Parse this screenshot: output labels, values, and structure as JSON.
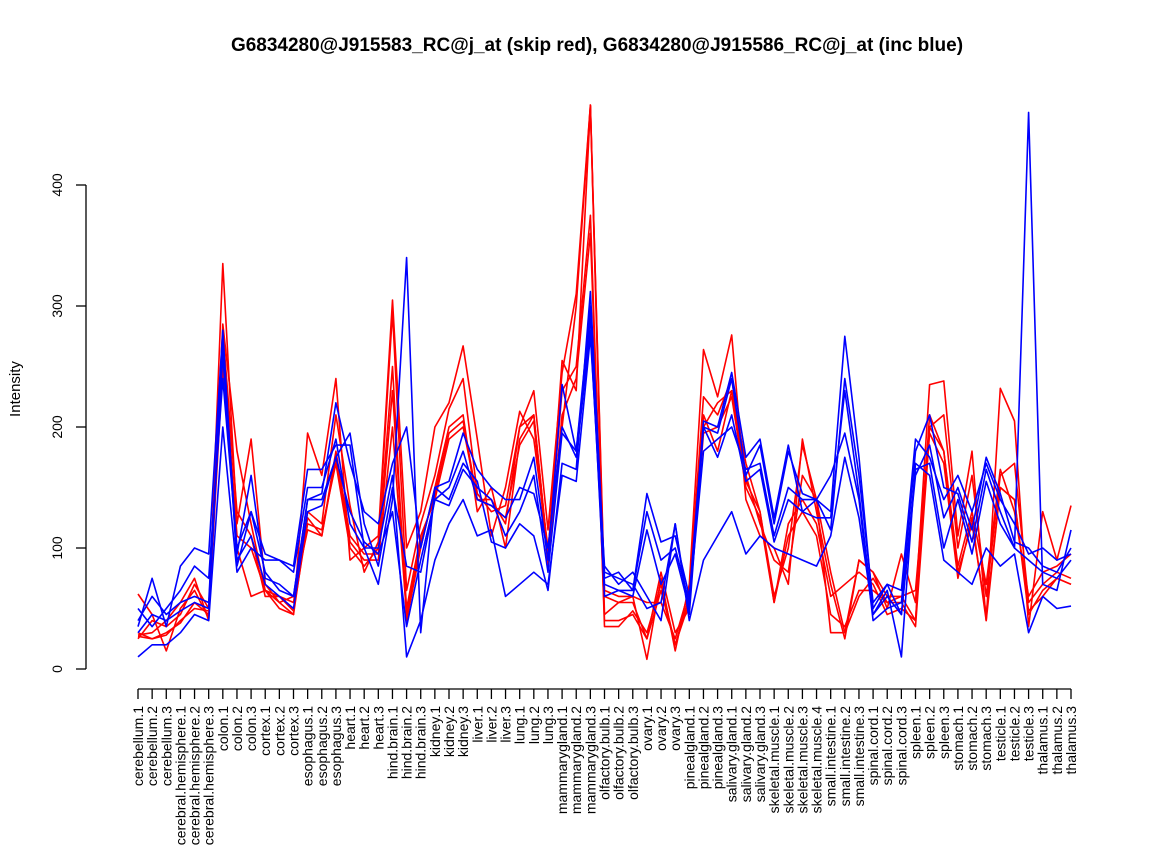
{
  "chart_data": {
    "type": "line",
    "title": "G6834280@J915583_RC@j_at (skip red), G6834280@J915586_RC@j_at (inc blue)",
    "xlabel": "",
    "ylabel": "Intensity",
    "ylim": [
      0,
      400
    ],
    "yticks": [
      0,
      100,
      200,
      300,
      400
    ],
    "grid": false,
    "legend": "none",
    "colors": {
      "skip": "#ff0000",
      "inc": "#0000ff"
    },
    "categories": [
      "cerebellum.1",
      "cerebellum.2",
      "cerebellum.3",
      "cerebral.hemisphere.1",
      "cerebral.hemisphere.2",
      "cerebral.hemisphere.3",
      "colon.1",
      "colon.2",
      "colon.3",
      "cortex.1",
      "cortex.2",
      "cortex.3",
      "esophagus.1",
      "esophagus.2",
      "esophagus.3",
      "heart.1",
      "heart.2",
      "heart.3",
      "hind.brain.1",
      "hind.brain.2",
      "hind.brain.3",
      "kidney.1",
      "kidney.2",
      "kidney.3",
      "liver.1",
      "liver.2",
      "liver.3",
      "lung.1",
      "lung.2",
      "lung.3",
      "mammarygland.1",
      "mammarygland.2",
      "mammarygland.3",
      "olfactory.bulb.1",
      "olfactory.bulb.2",
      "olfactory.bulb.3",
      "ovary.1",
      "ovary.2",
      "ovary.3",
      "pinealgland.1",
      "pinealgland.2",
      "pinealgland.3",
      "salivary.gland.1",
      "salivary.gland.2",
      "salivary.gland.3",
      "skeletal.muscle.1",
      "skeletal.muscle.2",
      "skeletal.muscle.3",
      "skeletal.muscle.4",
      "small.intestine.1",
      "small.intestine.2",
      "small.intestine.3",
      "spinal.cord.1",
      "spinal.cord.2",
      "spinal.cord.3",
      "spleen.1",
      "spleen.2",
      "spleen.3",
      "stomach.1",
      "stomach.2",
      "stomach.3",
      "testicle.1",
      "testicle.2",
      "testicle.3",
      "thalamus.1",
      "thalamus.2",
      "thalamus.3"
    ],
    "series": [
      {
        "group": "skip",
        "values": [
          62,
          45,
          15,
          50,
          65,
          42,
          335,
          120,
          190,
          70,
          55,
          45,
          195,
          160,
          240,
          90,
          100,
          110,
          305,
          100,
          130,
          200,
          220,
          267,
          190,
          110,
          150,
          213,
          190,
          100,
          200,
          300,
          466,
          60,
          55,
          60,
          8,
          75,
          15,
          70,
          264,
          225,
          276,
          140,
          110,
          100,
          70,
          190,
          130,
          70,
          25,
          90,
          80,
          50,
          95,
          55,
          235,
          238,
          110,
          180,
          40,
          232,
          205,
          35,
          130,
          90,
          135
        ]
      },
      {
        "group": "skip",
        "values": [
          28,
          30,
          40,
          55,
          75,
          40,
          285,
          180,
          120,
          65,
          60,
          55,
          130,
          120,
          210,
          135,
          80,
          105,
          295,
          65,
          120,
          160,
          215,
          240,
          145,
          130,
          135,
          200,
          230,
          115,
          245,
          310,
          466,
          65,
          60,
          60,
          55,
          55,
          25,
          65,
          225,
          210,
          240,
          160,
          120,
          90,
          80,
          160,
          140,
          30,
          30,
          90,
          80,
          60,
          60,
          40,
          210,
          180,
          85,
          130,
          70,
          165,
          130,
          60,
          80,
          85,
          95
        ]
      },
      {
        "group": "skip",
        "values": [
          25,
          40,
          35,
          45,
          70,
          50,
          280,
          130,
          110,
          60,
          60,
          48,
          120,
          115,
          170,
          100,
          85,
          100,
          250,
          40,
          100,
          150,
          200,
          210,
          130,
          150,
          100,
          190,
          210,
          95,
          255,
          230,
          465,
          45,
          55,
          55,
          25,
          80,
          30,
          50,
          210,
          180,
          230,
          170,
          130,
          60,
          100,
          185,
          140,
          80,
          30,
          60,
          75,
          55,
          60,
          65,
          200,
          210,
          100,
          160,
          60,
          160,
          170,
          55,
          70,
          80,
          75
        ]
      },
      {
        "group": "skip",
        "values": [
          30,
          25,
          28,
          40,
          50,
          48,
          270,
          110,
          100,
          65,
          50,
          45,
          125,
          110,
          180,
          110,
          95,
          95,
          230,
          50,
          110,
          140,
          190,
          200,
          140,
          140,
          120,
          200,
          210,
          95,
          230,
          250,
          375,
          35,
          35,
          48,
          30,
          70,
          20,
          60,
          200,
          220,
          230,
          155,
          130,
          55,
          120,
          140,
          120,
          60,
          70,
          80,
          70,
          45,
          50,
          40,
          200,
          180,
          80,
          120,
          45,
          150,
          140,
          48,
          60,
          75,
          70
        ]
      },
      {
        "group": "skip",
        "values": [
          27,
          25,
          30,
          38,
          55,
          45,
          250,
          100,
          60,
          65,
          55,
          60,
          115,
          110,
          175,
          105,
          90,
          90,
          200,
          45,
          105,
          145,
          195,
          205,
          140,
          135,
          125,
          185,
          205,
          85,
          210,
          240,
          360,
          40,
          40,
          45,
          25,
          65,
          20,
          55,
          195,
          200,
          225,
          150,
          125,
          55,
          110,
          130,
          110,
          45,
          35,
          65,
          65,
          55,
          55,
          35,
          195,
          170,
          75,
          125,
          40,
          150,
          140,
          45,
          65,
          75,
          70
        ]
      },
      {
        "group": "inc",
        "values": [
          10,
          20,
          20,
          30,
          45,
          40,
          200,
          80,
          100,
          90,
          90,
          80,
          150,
          150,
          190,
          120,
          100,
          100,
          160,
          10,
          40,
          90,
          120,
          140,
          110,
          115,
          60,
          70,
          80,
          70,
          160,
          155,
          275,
          85,
          70,
          80,
          60,
          40,
          120,
          40,
          90,
          110,
          130,
          95,
          110,
          100,
          95,
          90,
          85,
          110,
          175,
          125,
          45,
          65,
          10,
          170,
          160,
          90,
          80,
          70,
          100,
          85,
          95,
          30,
          60,
          50,
          52
        ]
      },
      {
        "group": "inc",
        "values": [
          35,
          75,
          35,
          85,
          100,
          95,
          280,
          85,
          130,
          95,
          90,
          85,
          165,
          165,
          185,
          185,
          100,
          70,
          140,
          340,
          30,
          150,
          140,
          170,
          155,
          105,
          100,
          120,
          110,
          65,
          170,
          165,
          312,
          80,
          75,
          70,
          50,
          55,
          120,
          45,
          200,
          195,
          240,
          160,
          185,
          120,
          180,
          145,
          140,
          160,
          195,
          140,
          40,
          50,
          55,
          180,
          210,
          150,
          145,
          105,
          165,
          130,
          100,
          460,
          70,
          65,
          115
        ]
      },
      {
        "group": "inc",
        "values": [
          50,
          35,
          50,
          65,
          85,
          75,
          240,
          100,
          130,
          80,
          65,
          60,
          140,
          145,
          220,
          170,
          130,
          120,
          170,
          200,
          100,
          150,
          155,
          195,
          165,
          150,
          140,
          140,
          175,
          90,
          235,
          180,
          300,
          75,
          80,
          65,
          145,
          105,
          110,
          60,
          205,
          200,
          245,
          175,
          190,
          125,
          185,
          130,
          140,
          130,
          275,
          175,
          50,
          70,
          65,
          190,
          175,
          140,
          160,
          130,
          170,
          140,
          120,
          95,
          100,
          90,
          95
        ]
      },
      {
        "group": "inc",
        "values": [
          40,
          60,
          45,
          55,
          60,
          55,
          270,
          95,
          160,
          75,
          70,
          60,
          140,
          140,
          175,
          195,
          120,
          85,
          150,
          85,
          80,
          140,
          135,
          165,
          150,
          140,
          110,
          130,
          160,
          80,
          195,
          180,
          290,
          60,
          65,
          65,
          130,
          90,
          100,
          55,
          180,
          190,
          200,
          165,
          170,
          110,
          150,
          140,
          140,
          115,
          240,
          160,
          55,
          70,
          45,
          160,
          185,
          125,
          150,
          115,
          175,
          145,
          105,
          100,
          85,
          80,
          100
        ]
      },
      {
        "group": "inc",
        "values": [
          30,
          45,
          40,
          48,
          55,
          50,
          260,
          90,
          110,
          70,
          60,
          50,
          130,
          135,
          175,
          130,
          105,
          95,
          130,
          35,
          90,
          140,
          150,
          180,
          140,
          135,
          125,
          150,
          145,
          100,
          200,
          175,
          280,
          70,
          65,
          60,
          115,
          70,
          95,
          50,
          200,
          175,
          210,
          155,
          165,
          105,
          140,
          130,
          125,
          125,
          230,
          145,
          45,
          60,
          45,
          165,
          170,
          100,
          140,
          95,
          155,
          120,
          100,
          90,
          80,
          75,
          90
        ]
      }
    ]
  }
}
